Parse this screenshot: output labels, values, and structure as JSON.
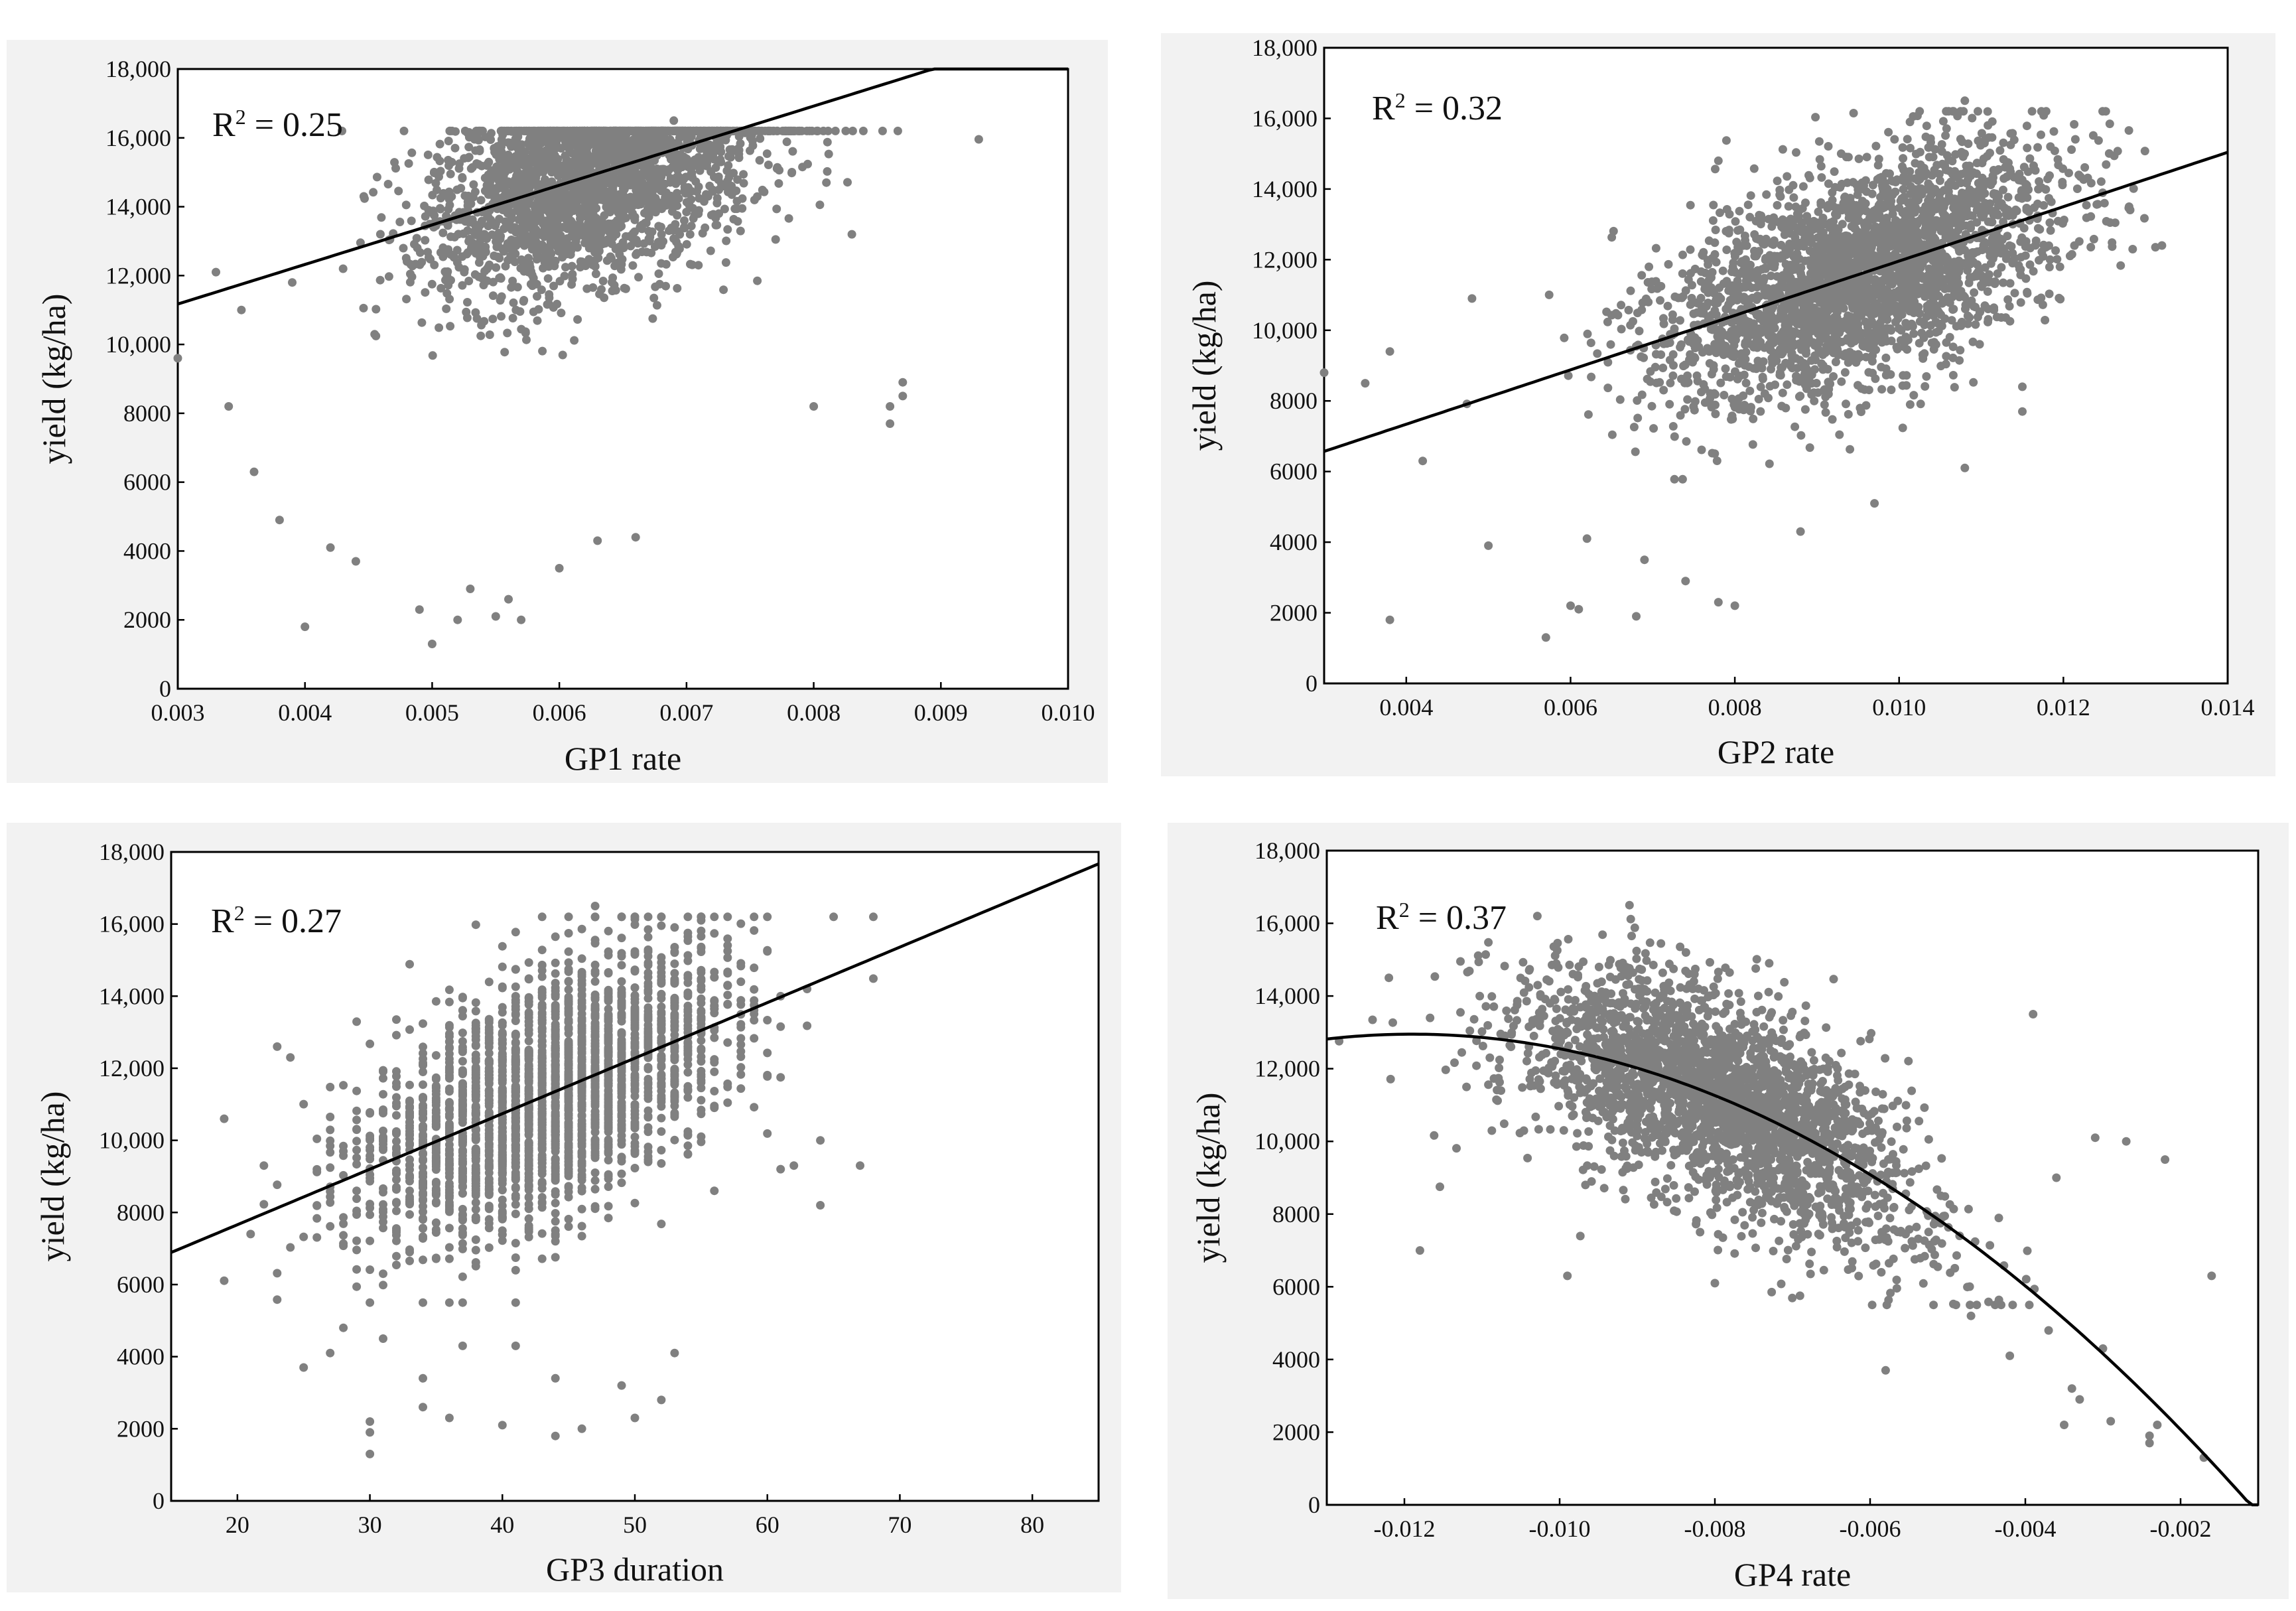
{
  "figure": {
    "description_free": true
  },
  "colors": {
    "points": "#808080",
    "fit_line": "#000000",
    "panel_background": "#f2f2f2"
  },
  "chart_data": [
    {
      "id": "gp1",
      "type": "scatter",
      "xlabel": "GP1 rate",
      "ylabel": "yield (kg/ha)",
      "annotation": {
        "text": "R",
        "sup": "2",
        "value": " = 0.25"
      },
      "xlim": [
        0.003,
        0.01
      ],
      "ylim": [
        0,
        18000
      ],
      "xticks": [
        0.003,
        0.004,
        0.005,
        0.006,
        0.007,
        0.008,
        0.009,
        0.01
      ],
      "xtick_labels": [
        "0.003",
        "0.004",
        "0.005",
        "0.006",
        "0.007",
        "0.008",
        "0.009",
        "0.010"
      ],
      "yticks": [
        0,
        2000,
        4000,
        6000,
        8000,
        10000,
        12000,
        14000,
        16000,
        18000
      ],
      "ytick_labels": [
        "0",
        "2000",
        "4000",
        "6000",
        "8000",
        "10,000",
        "12,000",
        "14,000",
        "16,000",
        "18,000"
      ],
      "fit": {
        "kind": "linear",
        "coef": [
          7723,
          1150000
        ]
      },
      "cluster": {
        "count": 2600,
        "x_mean": 0.0063,
        "x_sd": 0.00065,
        "resid_sd": 1550,
        "seed": 11
      },
      "outliers": [
        [
          0.003,
          9600
        ],
        [
          0.0033,
          12100
        ],
        [
          0.0034,
          8200
        ],
        [
          0.0035,
          11000
        ],
        [
          0.0036,
          6300
        ],
        [
          0.0038,
          4900
        ],
        [
          0.0039,
          11800
        ],
        [
          0.004,
          1800
        ],
        [
          0.0042,
          4100
        ],
        [
          0.0043,
          12200
        ],
        [
          0.0044,
          3700
        ],
        [
          0.0049,
          2300
        ],
        [
          0.005,
          1300
        ],
        [
          0.0052,
          2000
        ],
        [
          0.0053,
          2900
        ],
        [
          0.0055,
          2100
        ],
        [
          0.0056,
          2600
        ],
        [
          0.0057,
          2000
        ],
        [
          0.006,
          3500
        ],
        [
          0.0063,
          4300
        ],
        [
          0.0066,
          4400
        ],
        [
          0.0069,
          16500
        ],
        [
          0.008,
          8200
        ],
        [
          0.0086,
          7700
        ],
        [
          0.0086,
          8200
        ],
        [
          0.0087,
          8900
        ],
        [
          0.0087,
          8500
        ],
        [
          0.0081,
          14700
        ],
        [
          0.0083,
          13200
        ]
      ]
    },
    {
      "id": "gp2",
      "type": "scatter",
      "xlabel": "GP2 rate",
      "ylabel": "yield (kg/ha)",
      "annotation": {
        "text": "R",
        "sup": "2",
        "value": " = 0.32"
      },
      "xlim": [
        0.003,
        0.014
      ],
      "ylim": [
        0,
        18000
      ],
      "xticks": [
        0.004,
        0.006,
        0.008,
        0.01,
        0.012,
        0.014
      ],
      "xtick_labels": [
        "0.004",
        "0.006",
        "0.008",
        "0.010",
        "0.012",
        "0.014"
      ],
      "yticks": [
        0,
        2000,
        4000,
        6000,
        8000,
        10000,
        12000,
        14000,
        16000,
        18000
      ],
      "ytick_labels": [
        "0",
        "2000",
        "4000",
        "6000",
        "8000",
        "10,000",
        "12,000",
        "14,000",
        "16,000",
        "18,000"
      ],
      "fit": {
        "kind": "linear",
        "coef": [
          4260,
          770000
        ]
      },
      "cluster": {
        "count": 2700,
        "x_mean": 0.0095,
        "x_sd": 0.0012,
        "resid_sd": 1500,
        "seed": 23
      },
      "outliers": [
        [
          0.003,
          8800
        ],
        [
          0.0035,
          8500
        ],
        [
          0.0038,
          1800
        ],
        [
          0.0038,
          9400
        ],
        [
          0.0042,
          6300
        ],
        [
          0.0048,
          10900
        ],
        [
          0.005,
          3900
        ],
        [
          0.0057,
          1300
        ],
        [
          0.006,
          2200
        ],
        [
          0.0061,
          2100
        ],
        [
          0.0062,
          4100
        ],
        [
          0.0068,
          1900
        ],
        [
          0.0069,
          3500
        ],
        [
          0.0074,
          2900
        ],
        [
          0.0078,
          2300
        ],
        [
          0.008,
          2200
        ],
        [
          0.0088,
          4300
        ],
        [
          0.0097,
          5100
        ],
        [
          0.0108,
          6100
        ],
        [
          0.0115,
          7700
        ],
        [
          0.0115,
          8400
        ],
        [
          0.0125,
          13600
        ],
        [
          0.0128,
          13500
        ],
        [
          0.0132,
          12400
        ],
        [
          0.0108,
          16500
        ],
        [
          0.0078,
          14800
        ]
      ]
    },
    {
      "id": "gp3",
      "type": "scatter",
      "xlabel": "GP3 duration",
      "ylabel": "yield (kg/ha)",
      "annotation": {
        "text": "R",
        "sup": "2",
        "value": " = 0.27"
      },
      "xlim": [
        15,
        85
      ],
      "ylim": [
        0,
        18000
      ],
      "xticks": [
        20,
        30,
        40,
        50,
        60,
        70,
        80
      ],
      "xtick_labels": [
        "20",
        "30",
        "40",
        "50",
        "60",
        "70",
        "80"
      ],
      "yticks": [
        0,
        2000,
        4000,
        6000,
        8000,
        10000,
        12000,
        14000,
        16000,
        18000
      ],
      "ytick_labels": [
        "0",
        "2000",
        "4000",
        "6000",
        "8000",
        "10,000",
        "12,000",
        "14,000",
        "16,000",
        "18,000"
      ],
      "fit": {
        "kind": "linear",
        "coef": [
          4580,
          154
        ]
      },
      "cluster": {
        "count": 2600,
        "x_mean": 43,
        "x_sd": 6.5,
        "resid_sd": 1600,
        "seed": 37,
        "integer_x": true
      },
      "outliers": [
        [
          19,
          10600
        ],
        [
          21,
          7400
        ],
        [
          22,
          9300
        ],
        [
          23,
          12600
        ],
        [
          24,
          12300
        ],
        [
          25,
          3700
        ],
        [
          27,
          4100
        ],
        [
          28,
          4800
        ],
        [
          30,
          1300
        ],
        [
          30,
          1900
        ],
        [
          30,
          2200
        ],
        [
          31,
          4500
        ],
        [
          34,
          2600
        ],
        [
          34,
          3400
        ],
        [
          36,
          2300
        ],
        [
          37,
          4300
        ],
        [
          40,
          2100
        ],
        [
          41,
          4300
        ],
        [
          44,
          1800
        ],
        [
          44,
          3400
        ],
        [
          46,
          2000
        ],
        [
          47,
          16500
        ],
        [
          49,
          3200
        ],
        [
          50,
          2300
        ],
        [
          52,
          2800
        ],
        [
          53,
          4100
        ],
        [
          56,
          8600
        ],
        [
          61,
          9200
        ],
        [
          62,
          9300
        ],
        [
          63,
          14200
        ],
        [
          64,
          8200
        ],
        [
          64,
          10000
        ],
        [
          67,
          9300
        ]
      ]
    },
    {
      "id": "gp4",
      "type": "scatter",
      "xlabel": "GP4 rate",
      "ylabel": "yield (kg/ha)",
      "annotation": {
        "text": "R",
        "sup": "2",
        "value": " = 0.37"
      },
      "xlim": [
        -0.013,
        -0.001
      ],
      "ylim": [
        0,
        18000
      ],
      "xticks": [
        -0.012,
        -0.01,
        -0.008,
        -0.006,
        -0.004,
        -0.002
      ],
      "xtick_labels": [
        "-0.012",
        "-0.010",
        "-0.008",
        "-0.006",
        "-0.004",
        "-0.002"
      ],
      "yticks": [
        0,
        2000,
        4000,
        6000,
        8000,
        10000,
        12000,
        14000,
        16000,
        18000
      ],
      "ytick_labels": [
        "0",
        "2000",
        "4000",
        "6000",
        "8000",
        "10,000",
        "12,000",
        "14,000",
        "16,000",
        "18,000"
      ],
      "fit": {
        "kind": "quadratic",
        "vertex": [
          -0.0119,
          12950
        ],
        "a": -111000000
      },
      "cluster": {
        "count": 2600,
        "x_mean": -0.0079,
        "x_sd": 0.0013,
        "resid_sd": 1450,
        "seed": 53
      },
      "outliers": [
        [
          -0.0122,
          14500
        ],
        [
          -0.0118,
          7000
        ],
        [
          -0.0112,
          11500
        ],
        [
          -0.0099,
          6300
        ],
        [
          -0.0091,
          16500
        ],
        [
          -0.008,
          6100
        ],
        [
          -0.0073,
          14900
        ],
        [
          -0.0058,
          3700
        ],
        [
          -0.0047,
          5200
        ],
        [
          -0.0042,
          4100
        ],
        [
          -0.0039,
          13500
        ],
        [
          -0.0037,
          4800
        ],
        [
          -0.0034,
          3200
        ],
        [
          -0.0033,
          2900
        ],
        [
          -0.0031,
          10100
        ],
        [
          -0.003,
          4300
        ],
        [
          -0.0029,
          2300
        ],
        [
          -0.0027,
          10000
        ],
        [
          -0.0024,
          1900
        ],
        [
          -0.0024,
          1700
        ],
        [
          -0.0023,
          2200
        ],
        [
          -0.0022,
          9500
        ],
        [
          -0.0017,
          1300
        ],
        [
          -0.0016,
          6300
        ],
        [
          -0.0036,
          9000
        ],
        [
          -0.0035,
          2200
        ]
      ]
    }
  ]
}
